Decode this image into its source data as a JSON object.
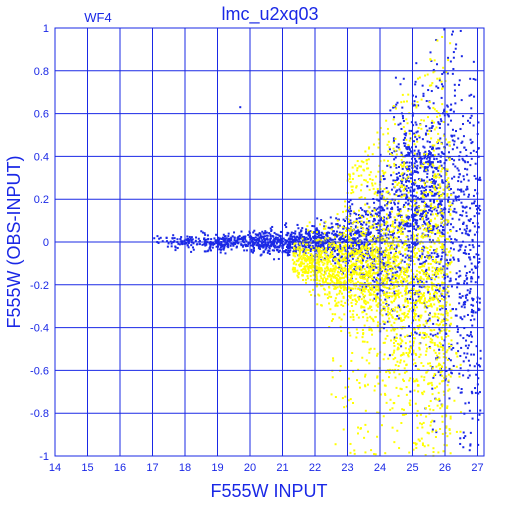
{
  "chart_data": {
    "type": "scatter",
    "title": "lmc_u2xq03",
    "panel_label": "WF4",
    "xlabel": "F555W INPUT",
    "ylabel": "F555W (OBS-INPUT)",
    "xlim": [
      14,
      27.2
    ],
    "ylim": [
      -1,
      1
    ],
    "grid": true,
    "x_ticks": [
      14,
      15,
      16,
      17,
      18,
      19,
      20,
      21,
      22,
      23,
      24,
      25,
      26,
      27
    ],
    "y_ticks": [
      -1,
      -0.8,
      -0.6,
      -0.4,
      -0.2,
      0,
      0.2,
      0.4,
      0.6,
      0.8,
      1
    ],
    "y_tick_labels": [
      "-1",
      "-0.8",
      "-0.6",
      "-0.4",
      "-0.2",
      "0",
      "0.2",
      "0.4",
      "0.6",
      "0.8",
      "1"
    ],
    "series": [
      {
        "color": "#1a28e6",
        "description_points": [
          {
            "x": 17.0,
            "y": 0.0
          },
          {
            "x": 19.0,
            "y": 0.0
          },
          {
            "x": 19.6,
            "y": 0.63
          },
          {
            "x": 21.0,
            "y": 0.0
          },
          {
            "x": 22.5,
            "y": 0.05
          },
          {
            "x": 24.0,
            "y": -0.1
          },
          {
            "x": 25.5,
            "y": 0.4
          },
          {
            "x": 25.8,
            "y": 0.45
          },
          {
            "x": 26.5,
            "y": -0.8
          },
          {
            "x": 27.0,
            "y": -0.95
          }
        ]
      },
      {
        "color": "#ffff00",
        "description_points": [
          {
            "x": 21.5,
            "y": -0.05
          },
          {
            "x": 22.5,
            "y": -0.1
          },
          {
            "x": 23.5,
            "y": -0.08
          },
          {
            "x": 24.0,
            "y": -0.2
          },
          {
            "x": 25.0,
            "y": -0.3
          },
          {
            "x": 25.5,
            "y": 0.9
          },
          {
            "x": 26.0,
            "y": -0.6
          }
        ]
      }
    ]
  }
}
